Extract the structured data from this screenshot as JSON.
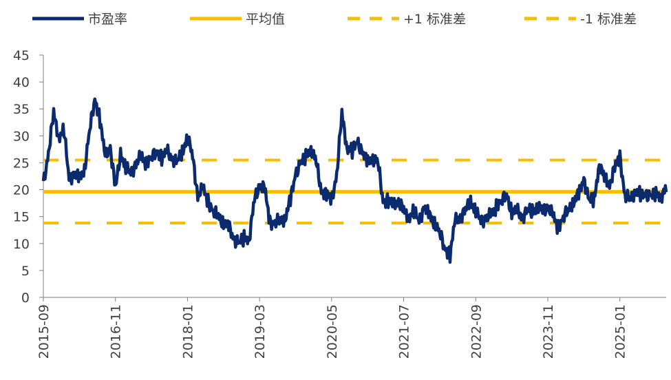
{
  "colors": {
    "pe": "#0c2a6e",
    "mean": "#f5bf00",
    "band": "#f5bf00",
    "axis": "#7f7f7f",
    "text": "#404040"
  },
  "chart_data": {
    "type": "line",
    "title": "",
    "xlabel": "",
    "ylabel": "",
    "ylim": [
      0,
      45
    ],
    "yticks": [
      0,
      5,
      10,
      15,
      20,
      25,
      30,
      35,
      40,
      45
    ],
    "xlim": [
      "2015-09",
      "2025-10"
    ],
    "xticks": [
      "2015-09",
      "2016-11",
      "2018-01",
      "2019-03",
      "2020-05",
      "2021-07",
      "2022-09",
      "2023-11",
      "2025-01"
    ],
    "grid": false,
    "legend_position": "top",
    "legend": [
      "市盈率",
      "平均值",
      "+1 标准差",
      "-1 标准差"
    ],
    "series": [
      {
        "name": "市盈率",
        "style": "solid-thick",
        "x": [
          "2015-09",
          "2015-10",
          "2015-11",
          "2015-12",
          "2016-01",
          "2016-02",
          "2016-03",
          "2016-04",
          "2016-05",
          "2016-06",
          "2016-07",
          "2016-08",
          "2016-09",
          "2016-10",
          "2016-11",
          "2016-12",
          "2017-01",
          "2017-02",
          "2017-03",
          "2017-04",
          "2017-05",
          "2017-06",
          "2017-07",
          "2017-08",
          "2017-09",
          "2017-10",
          "2017-11",
          "2017-12",
          "2018-01",
          "2018-02",
          "2018-03",
          "2018-04",
          "2018-05",
          "2018-06",
          "2018-07",
          "2018-08",
          "2018-09",
          "2018-10",
          "2018-11",
          "2018-12",
          "2019-01",
          "2019-02",
          "2019-03",
          "2019-04",
          "2019-05",
          "2019-06",
          "2019-07",
          "2019-08",
          "2019-09",
          "2019-10",
          "2019-11",
          "2019-12",
          "2020-01",
          "2020-02",
          "2020-03",
          "2020-04",
          "2020-05",
          "2020-06",
          "2020-07",
          "2020-08",
          "2020-09",
          "2020-10",
          "2020-11",
          "2020-12",
          "2021-01",
          "2021-02",
          "2021-03",
          "2021-04",
          "2021-05",
          "2021-06",
          "2021-07",
          "2021-08",
          "2021-09",
          "2021-10",
          "2021-11",
          "2021-12",
          "2022-01",
          "2022-02",
          "2022-03",
          "2022-04",
          "2022-05",
          "2022-06",
          "2022-07",
          "2022-08",
          "2022-09",
          "2022-10",
          "2022-11",
          "2022-12",
          "2023-01",
          "2023-02",
          "2023-03",
          "2023-04",
          "2023-05",
          "2023-06",
          "2023-07",
          "2023-08",
          "2023-09",
          "2023-10",
          "2023-11",
          "2023-12",
          "2024-01",
          "2024-02",
          "2024-03",
          "2024-04",
          "2024-05",
          "2024-06",
          "2024-07",
          "2024-08",
          "2024-09",
          "2024-10",
          "2024-11",
          "2024-12",
          "2025-01",
          "2025-02",
          "2025-03",
          "2025-04",
          "2025-05",
          "2025-06",
          "2025-07",
          "2025-08",
          "2025-09",
          "2025-10"
        ],
        "values": [
          21,
          27,
          34,
          30,
          31,
          22,
          23,
          22,
          24,
          31,
          37,
          33,
          26,
          28,
          20,
          27,
          24,
          23,
          25,
          26,
          25,
          26,
          27,
          26,
          27,
          26,
          25,
          27,
          30,
          26,
          19,
          20,
          18,
          16,
          15,
          14,
          13,
          11,
          10,
          11,
          11,
          18,
          21,
          20,
          14,
          14,
          14,
          15,
          18,
          23,
          25,
          26,
          28,
          25,
          20,
          19,
          18,
          23,
          34,
          28,
          27,
          29,
          27,
          25,
          26,
          25,
          18,
          18,
          17,
          18,
          16,
          15,
          16,
          14,
          17,
          15,
          14,
          12,
          9,
          8,
          14,
          15,
          16,
          18,
          16,
          14,
          15,
          15,
          17,
          18,
          19,
          16,
          16,
          15,
          16,
          16,
          17,
          16,
          17,
          15,
          13,
          15,
          16,
          18,
          19,
          22,
          18,
          18,
          25,
          22,
          21,
          24,
          26,
          19,
          18,
          20,
          19,
          19,
          19,
          19,
          19,
          20
        ]
      },
      {
        "name": "平均值",
        "style": "solid",
        "value": 19.6
      },
      {
        "name": "+1 标准差",
        "style": "dashed",
        "value": 25.5
      },
      {
        "name": "-1 标准差",
        "style": "dashed",
        "value": 13.8
      }
    ]
  }
}
